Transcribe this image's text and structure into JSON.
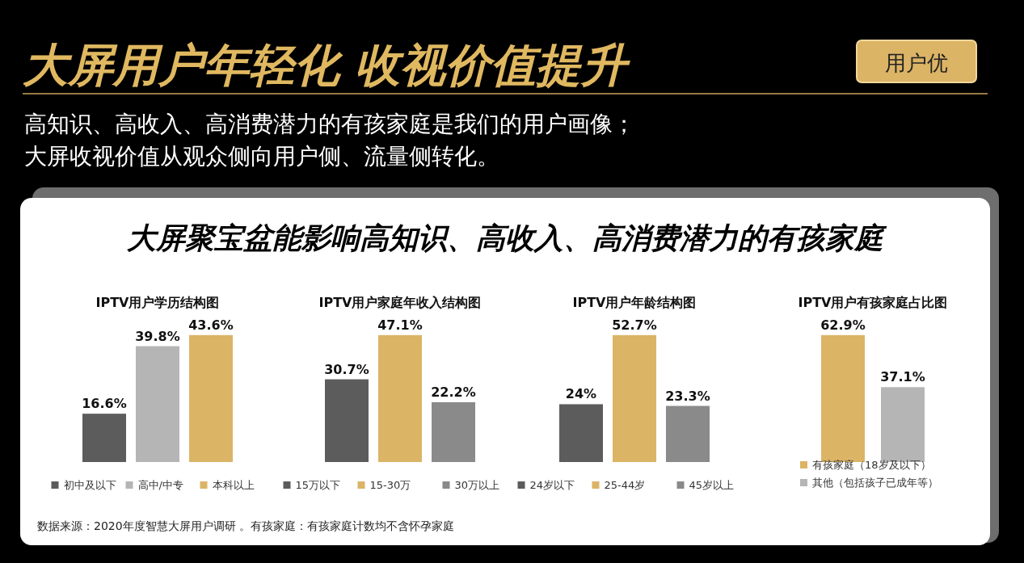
{
  "chart_data": [
    {
      "type": "other",
      "title": "大屏用户年轻化  收视价值提升",
      "subtitle": "大屏聚宝盆能影响高知识、高收入、高消费潜力的有孩家庭",
      "annotations": [
        "用户优",
        "高知识、高收入、高消费潜力的有孩家庭是我们的用户画像；",
        "大屏收视价值从观众侧向用户侧、流量侧转化。",
        "数据来源：2020年度智慧大屏用户调研 。有孩家庭：有孩家庭计数均不含怀孕家庭"
      ]
    },
    {
      "type": "bar",
      "title": "IPTV用户学历结构图",
      "categories": [
        null
      ],
      "legend": "bottom",
      "series": [
        {
          "name": "初中及以下",
          "color": "#5c5c5c",
          "values": [
            16.6
          ],
          "value_labels": [
            "16.6%"
          ]
        },
        {
          "name": "高中/中专",
          "color": "#b5b5b5",
          "values": [
            39.8
          ],
          "value_labels": [
            "39.8%"
          ]
        },
        {
          "name": "本科以上",
          "color": "#dcb466",
          "values": [
            43.6
          ],
          "value_labels": [
            "43.6%"
          ]
        }
      ]
    },
    {
      "type": "bar",
      "title": "IPTV用户家庭年收入结构图",
      "categories": [
        null
      ],
      "legend": "bottom",
      "series": [
        {
          "name": "15万以下",
          "color": "#5c5c5c",
          "values": [
            30.7
          ],
          "value_labels": [
            "30.7%"
          ]
        },
        {
          "name": "15-30万",
          "color": "#dcb466",
          "values": [
            47.1
          ],
          "value_labels": [
            "47.1%"
          ]
        },
        {
          "name": "30万以上",
          "color": "#8a8a8a",
          "values": [
            22.2
          ],
          "value_labels": [
            "22.2%"
          ]
        }
      ]
    },
    {
      "type": "bar",
      "title": "IPTV用户年龄结构图",
      "categories": [
        null
      ],
      "legend": "bottom",
      "series": [
        {
          "name": "24岁以下",
          "color": "#5c5c5c",
          "values": [
            24
          ],
          "value_labels": [
            "24%"
          ]
        },
        {
          "name": "25-44岁",
          "color": "#dcb466",
          "values": [
            52.7
          ],
          "value_labels": [
            "52.7%"
          ]
        },
        {
          "name": "45岁以上",
          "color": "#8a8a8a",
          "values": [
            23.3
          ],
          "value_labels": [
            "23.3%"
          ]
        }
      ]
    },
    {
      "type": "bar",
      "title": "IPTV用户有孩家庭占比图",
      "categories": [
        null
      ],
      "legend": "bottom",
      "series": [
        {
          "name": "有孩家庭（18岁及以下）",
          "color": "#dcb466",
          "values": [
            62.9
          ],
          "value_labels": [
            "62.9%"
          ]
        },
        {
          "name": "其他（包括孩子已成年等）",
          "color": "#b5b5b5",
          "values": [
            37.1
          ],
          "value_labels": [
            "37.1%"
          ]
        }
      ]
    }
  ]
}
